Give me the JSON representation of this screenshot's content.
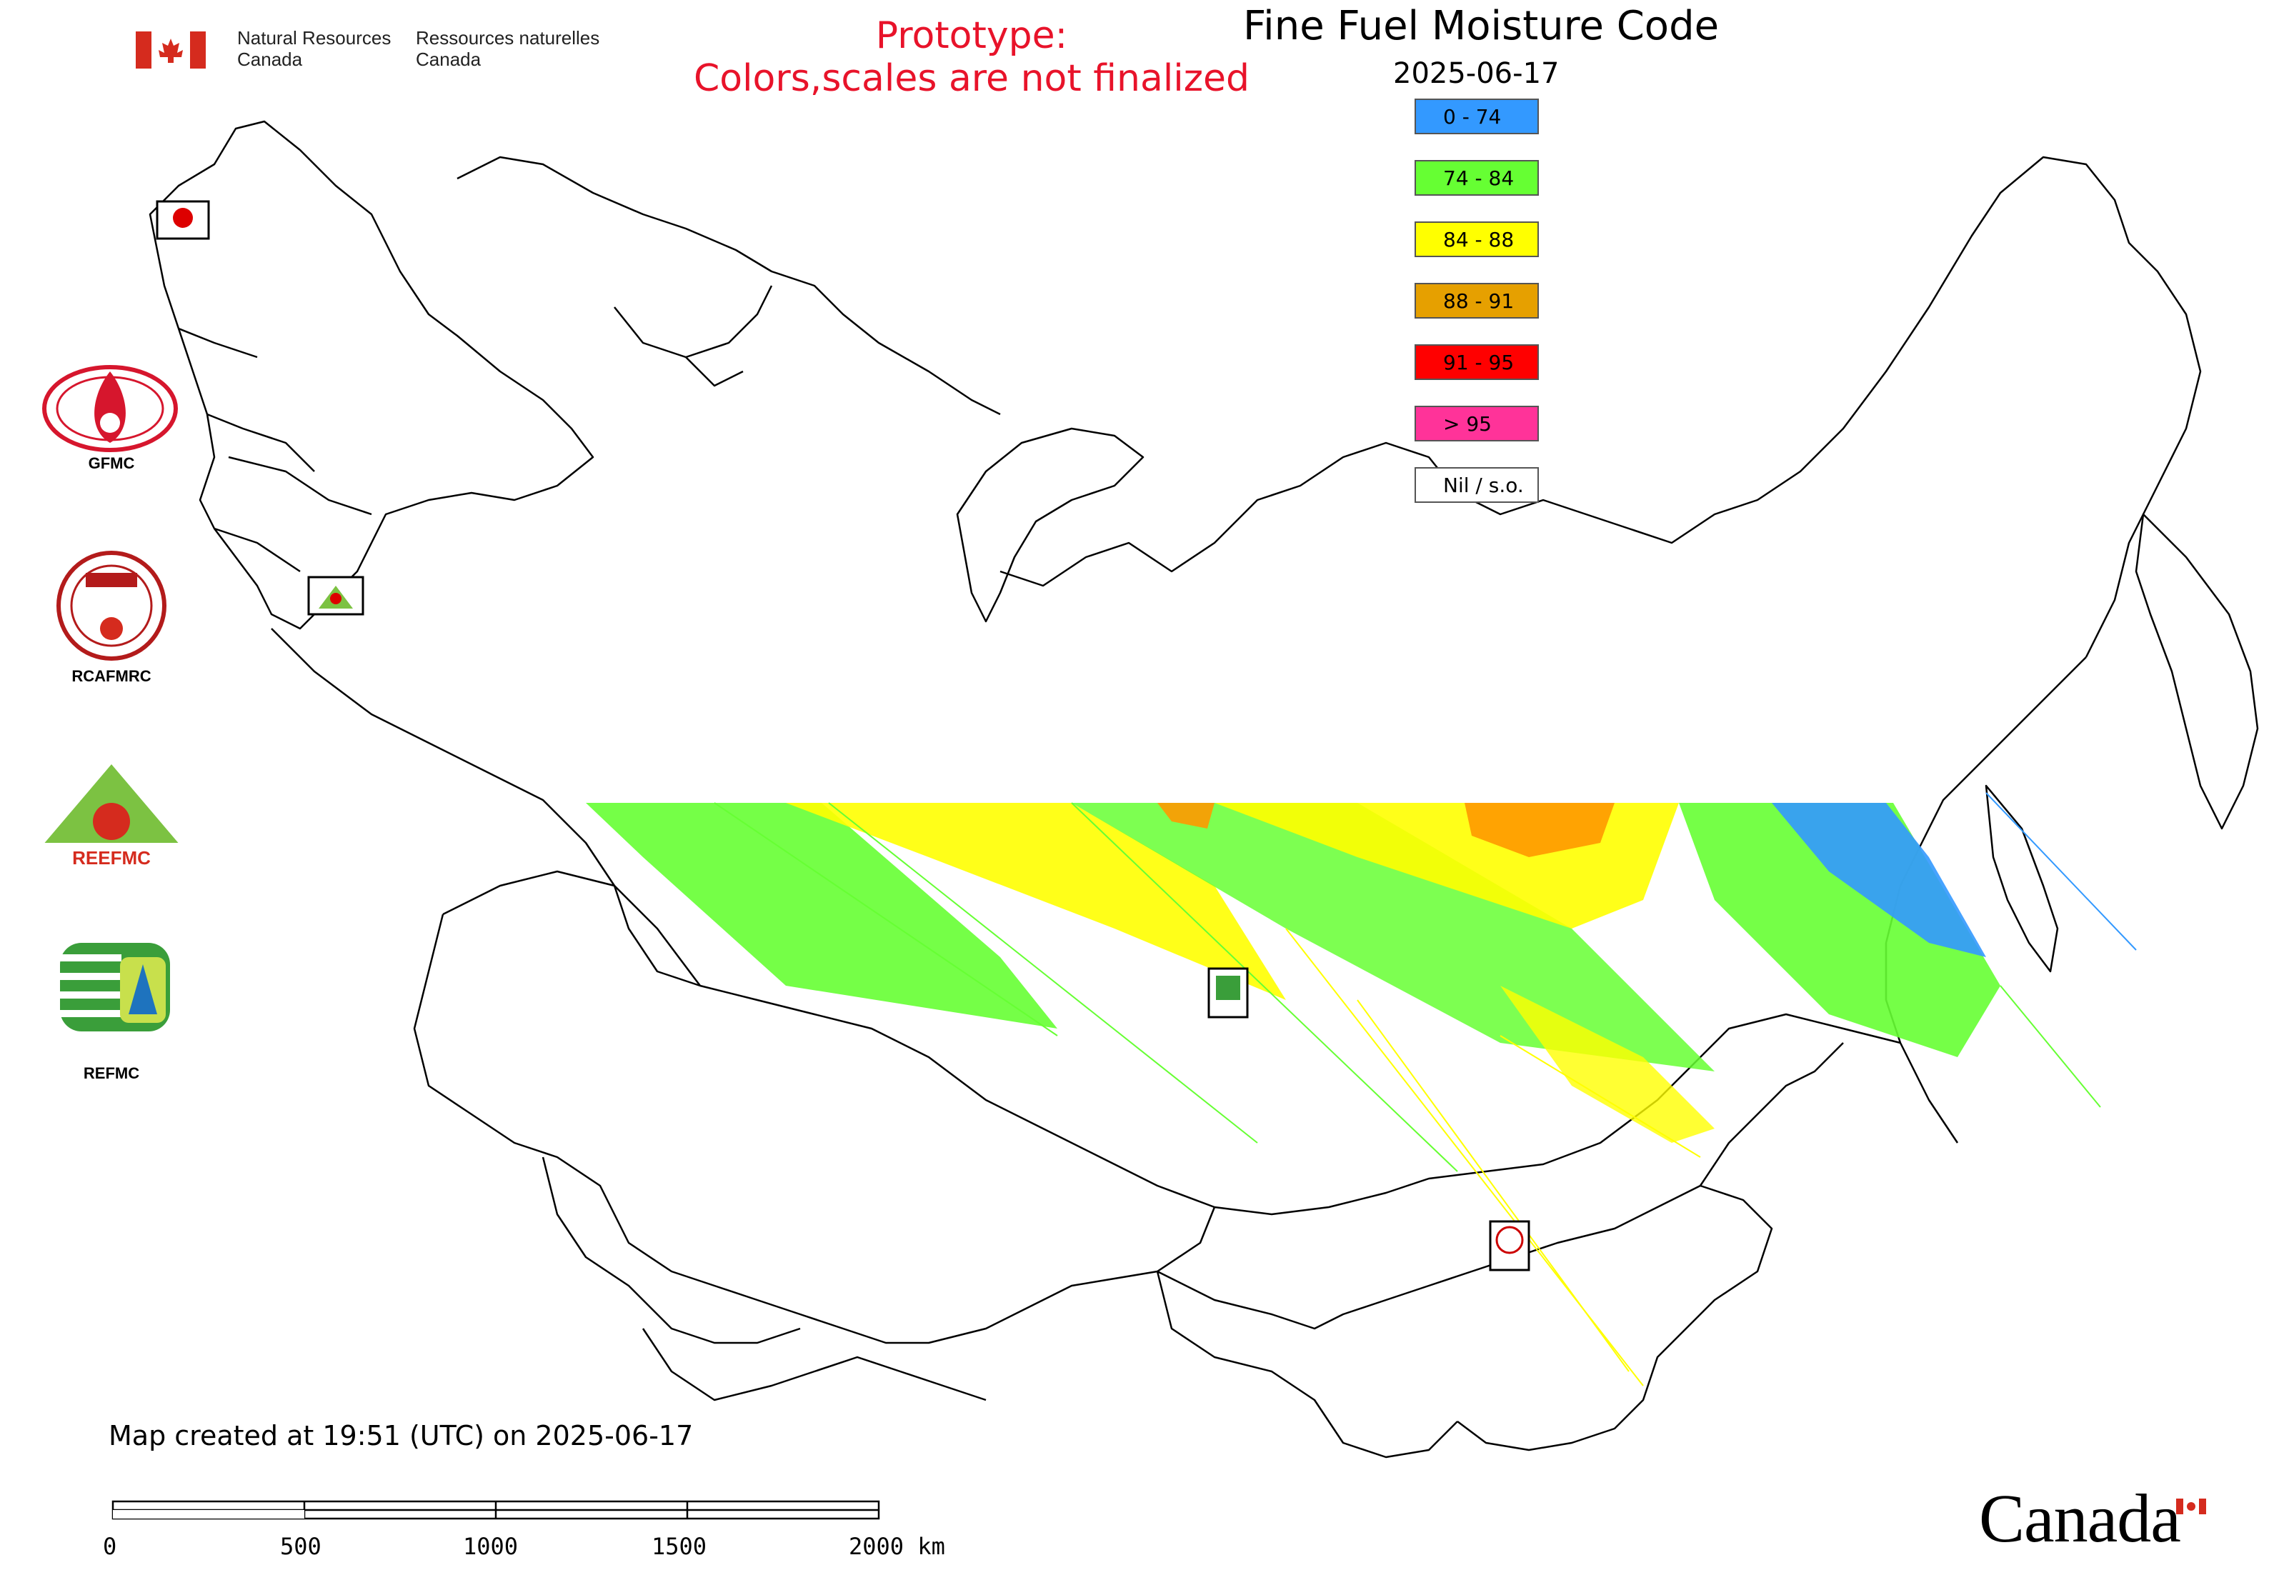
{
  "header": {
    "agency_en_1": "Natural Resources",
    "agency_en_2": "Canada",
    "agency_fr_1": "Ressources naturelles",
    "agency_fr_2": "Canada",
    "prototype_line1": "Prototype:",
    "prototype_line2": "Colors,scales are not finalized"
  },
  "map": {
    "title": "Fine Fuel Moisture Code",
    "date": "2025-06-17"
  },
  "legend": [
    {
      "label": "0 - 74",
      "color": "#3399ff"
    },
    {
      "label": "74 - 84",
      "color": "#66ff33"
    },
    {
      "label": "84 - 88",
      "color": "#ffff00"
    },
    {
      "label": "88 - 91",
      "color": "#e6a000"
    },
    {
      "label": "91 - 95",
      "color": "#ff0000"
    },
    {
      "label": "> 95",
      "color": "#ff3399"
    },
    {
      "label": "Nil / s.o.",
      "color": "#ffffff"
    }
  ],
  "logos": [
    {
      "label": "GFMC",
      "icon": "gfmc-logo-icon"
    },
    {
      "label": "RCAFMRC",
      "icon": "rcafmrc-logo-icon"
    },
    {
      "label": "REEFMC",
      "icon": "reefmc-logo-icon"
    },
    {
      "label": "REFMC",
      "icon": "refmc-logo-icon"
    }
  ],
  "footer": {
    "created": "Map created at 19:51 (UTC) on 2025-06-17",
    "scale_labels": [
      "0",
      "500",
      "1000",
      "1500",
      "2000 km"
    ],
    "wordmark": "Canada"
  }
}
